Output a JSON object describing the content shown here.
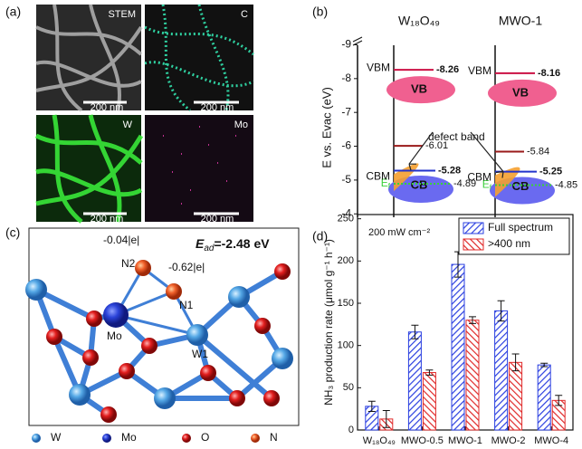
{
  "panels": {
    "a": {
      "label": "(a)",
      "tiles": [
        {
          "label": "STEM",
          "scale": "200 nm"
        },
        {
          "label": "C",
          "scale": "200 nm"
        },
        {
          "label": "W",
          "scale": "200 nm"
        },
        {
          "label": "Mo",
          "scale": "200 nm"
        }
      ]
    },
    "b": {
      "label": "(b)"
    },
    "c": {
      "label": "(c)",
      "energy_symbol": "E",
      "energy_sub": "ad",
      "energy_value": "=-2.48 eV",
      "atoms": {
        "n2": "N2",
        "n1": "N1",
        "mo": "Mo",
        "w1": "W1"
      },
      "charges": {
        "n2": "-0.04|e|",
        "n1": "-0.62|e|"
      },
      "legend": [
        "W",
        "Mo",
        "O",
        "N"
      ]
    },
    "d": {
      "label": "(d)"
    }
  },
  "chart_data": [
    {
      "type": "energy-level",
      "ylabel": "E vs. Evac (eV)",
      "ylim": [
        -9.2,
        -3.9
      ],
      "yticks": [
        -4,
        -5,
        -6,
        -7,
        -8,
        -9
      ],
      "series": [
        {
          "name": "W₁₈O₄₉",
          "values": [
            -4.89,
            -5.28,
            -6.01,
            -8.26
          ]
        },
        {
          "name": "MWO-1",
          "values": [
            -4.85,
            -5.25,
            -5.84,
            -8.16
          ]
        }
      ],
      "level_colors": [
        "#3ad13a",
        "#2233cc",
        "#9a1a1a",
        "#cc1144"
      ],
      "cb_label": "CB",
      "vb_label": "VB",
      "cbm_label": "CBM",
      "vbm_label": "VBM",
      "ef_label": "E",
      "ef_sub": "f",
      "defect_label": "defect band"
    },
    {
      "type": "bar",
      "annotation": "200 mW cm⁻²",
      "ylabel": "NH₃ production rate (μmol g⁻¹ h⁻¹)",
      "categories": [
        "W₁₈O₄₉",
        "MWO-0.5",
        "MWO-1",
        "MWO-2",
        "MWO-4"
      ],
      "ylim": [
        0,
        255
      ],
      "yticks": [
        0,
        50,
        100,
        150,
        200,
        250
      ],
      "legend": "upper right",
      "series": [
        {
          "name": "Full spectrum",
          "color": "#2a3fe0",
          "values": [
            28,
            116,
            196,
            141,
            77
          ],
          "errors": [
            6,
            8,
            15,
            12,
            2
          ]
        },
        {
          "name": ">400 nm",
          "color": "#e02a2a",
          "values": [
            13,
            68,
            130,
            80,
            35
          ],
          "errors": [
            10,
            3,
            4,
            10,
            6
          ]
        }
      ]
    }
  ]
}
